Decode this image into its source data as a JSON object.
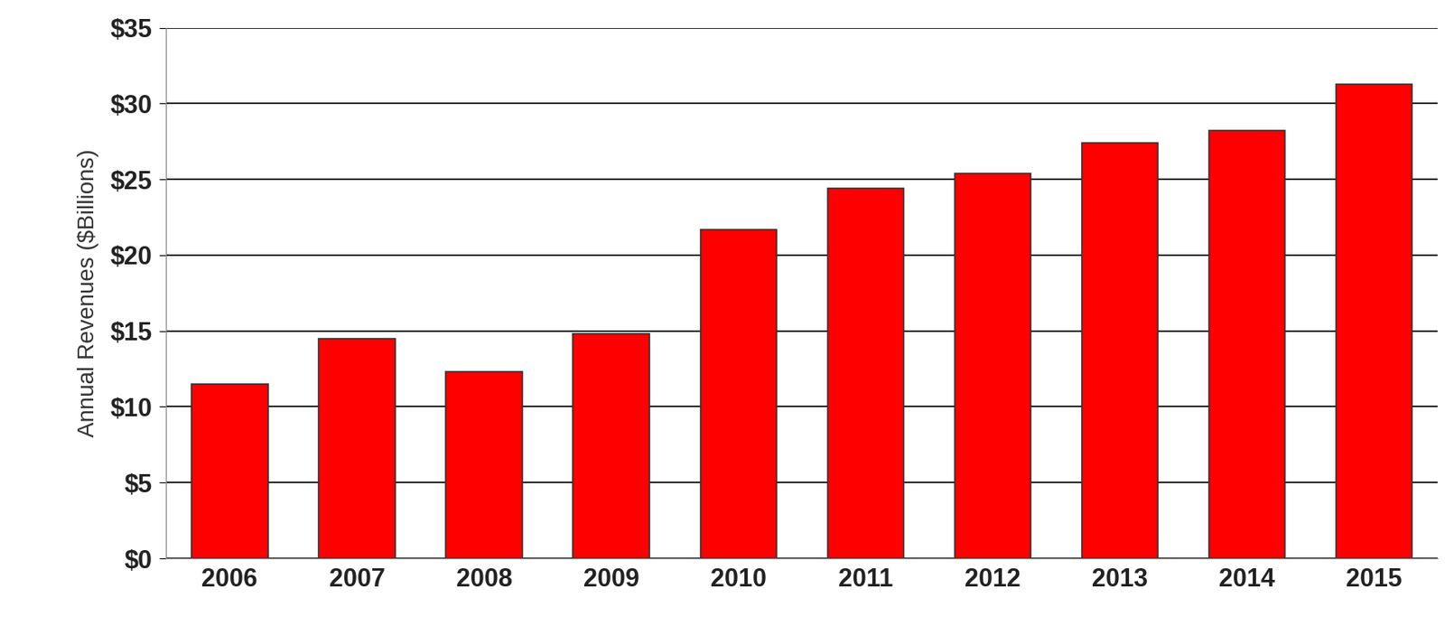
{
  "chart_data": {
    "type": "bar",
    "y_label": "Annual Revenues ($Billions)",
    "categories": [
      "2006",
      "2007",
      "2008",
      "2009",
      "2010",
      "2011",
      "2012",
      "2013",
      "2014",
      "2015"
    ],
    "values": [
      11.5,
      14.5,
      12.3,
      14.8,
      21.7,
      24.4,
      25.4,
      27.4,
      28.2,
      31.3
    ],
    "color": "#ff0000",
    "ylim": [
      0,
      35
    ],
    "yticks": [
      {
        "value": 0,
        "label": "$0"
      },
      {
        "value": 5,
        "label": "$5"
      },
      {
        "value": 10,
        "label": "$10"
      },
      {
        "value": 15,
        "label": "$15"
      },
      {
        "value": 20,
        "label": "$20"
      },
      {
        "value": 25,
        "label": "$25"
      },
      {
        "value": 30,
        "label": "$30"
      },
      {
        "value": 35,
        "label": "$35"
      }
    ],
    "grid": true
  }
}
